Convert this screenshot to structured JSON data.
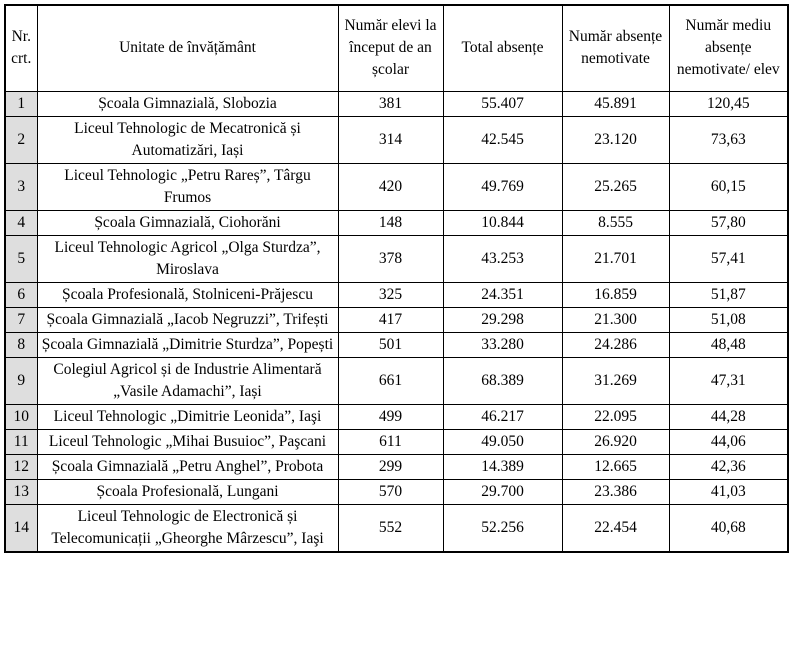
{
  "table": {
    "columns": [
      "Nr. crt.",
      "Unitate de învățământ",
      "Număr elevi la început de an școlar",
      "Total absențe",
      "Număr absențe nemotivate",
      "Număr mediu absențe nemotivate/ elev"
    ],
    "rows": [
      {
        "nr": "1",
        "unitate": "Școala Gimnazială, Slobozia",
        "elevi": "381",
        "total_absente": "55.407",
        "absente_nemotivate": "45.891",
        "medie": "120,45"
      },
      {
        "nr": "2",
        "unitate": "Liceul Tehnologic de Mecatronică și Automatizări, Iași",
        "elevi": "314",
        "total_absente": "42.545",
        "absente_nemotivate": "23.120",
        "medie": "73,63"
      },
      {
        "nr": "3",
        "unitate": "Liceul Tehnologic „Petru Rareș”, Târgu Frumos",
        "elevi": "420",
        "total_absente": "49.769",
        "absente_nemotivate": "25.265",
        "medie": "60,15"
      },
      {
        "nr": "4",
        "unitate": "Școala Gimnazială, Ciohorăni",
        "elevi": "148",
        "total_absente": "10.844",
        "absente_nemotivate": "8.555",
        "medie": "57,80"
      },
      {
        "nr": "5",
        "unitate": "Liceul Tehnologic Agricol „Olga Sturdza”, Miroslava",
        "elevi": "378",
        "total_absente": "43.253",
        "absente_nemotivate": "21.701",
        "medie": "57,41"
      },
      {
        "nr": "6",
        "unitate": "Școala Profesională, Stolniceni-Prăjescu",
        "elevi": "325",
        "total_absente": "24.351",
        "absente_nemotivate": "16.859",
        "medie": "51,87"
      },
      {
        "nr": "7",
        "unitate": "Școala Gimnazială „Iacob Negruzzi”, Trifești",
        "elevi": "417",
        "total_absente": "29.298",
        "absente_nemotivate": "21.300",
        "medie": "51,08"
      },
      {
        "nr": "8",
        "unitate": "Școala Gimnazială „Dimitrie Sturdza”, Popești",
        "elevi": "501",
        "total_absente": "33.280",
        "absente_nemotivate": "24.286",
        "medie": "48,48"
      },
      {
        "nr": "9",
        "unitate": "Colegiul Agricol și de Industrie Alimentară „Vasile Adamachi”, Iași",
        "elevi": "661",
        "total_absente": "68.389",
        "absente_nemotivate": "31.269",
        "medie": "47,31"
      },
      {
        "nr": "10",
        "unitate": "Liceul Tehnologic „Dimitrie Leonida”, Iaşi",
        "elevi": "499",
        "total_absente": "46.217",
        "absente_nemotivate": "22.095",
        "medie": "44,28"
      },
      {
        "nr": "11",
        "unitate": "Liceul Tehnologic „Mihai Busuioc”, Paşcani",
        "elevi": "611",
        "total_absente": "49.050",
        "absente_nemotivate": "26.920",
        "medie": "44,06"
      },
      {
        "nr": "12",
        "unitate": "Școala Gimnazială „Petru Anghel”, Probota",
        "elevi": "299",
        "total_absente": "14.389",
        "absente_nemotivate": "12.665",
        "medie": "42,36"
      },
      {
        "nr": "13",
        "unitate": "Școala Profesională, Lungani",
        "elevi": "570",
        "total_absente": "29.700",
        "absente_nemotivate": "23.386",
        "medie": "41,03"
      },
      {
        "nr": "14",
        "unitate": "Liceul Tehnologic de Electronică și Telecomunicații „Gheorghe Mârzescu”, Iaşi",
        "elevi": "552",
        "total_absente": "52.256",
        "absente_nemotivate": "22.454",
        "medie": "40,68"
      }
    ]
  },
  "colors": {
    "row_number_bg": "#dedede",
    "border": "#000000",
    "page_bg": "#ffffff",
    "text": "#000000"
  }
}
